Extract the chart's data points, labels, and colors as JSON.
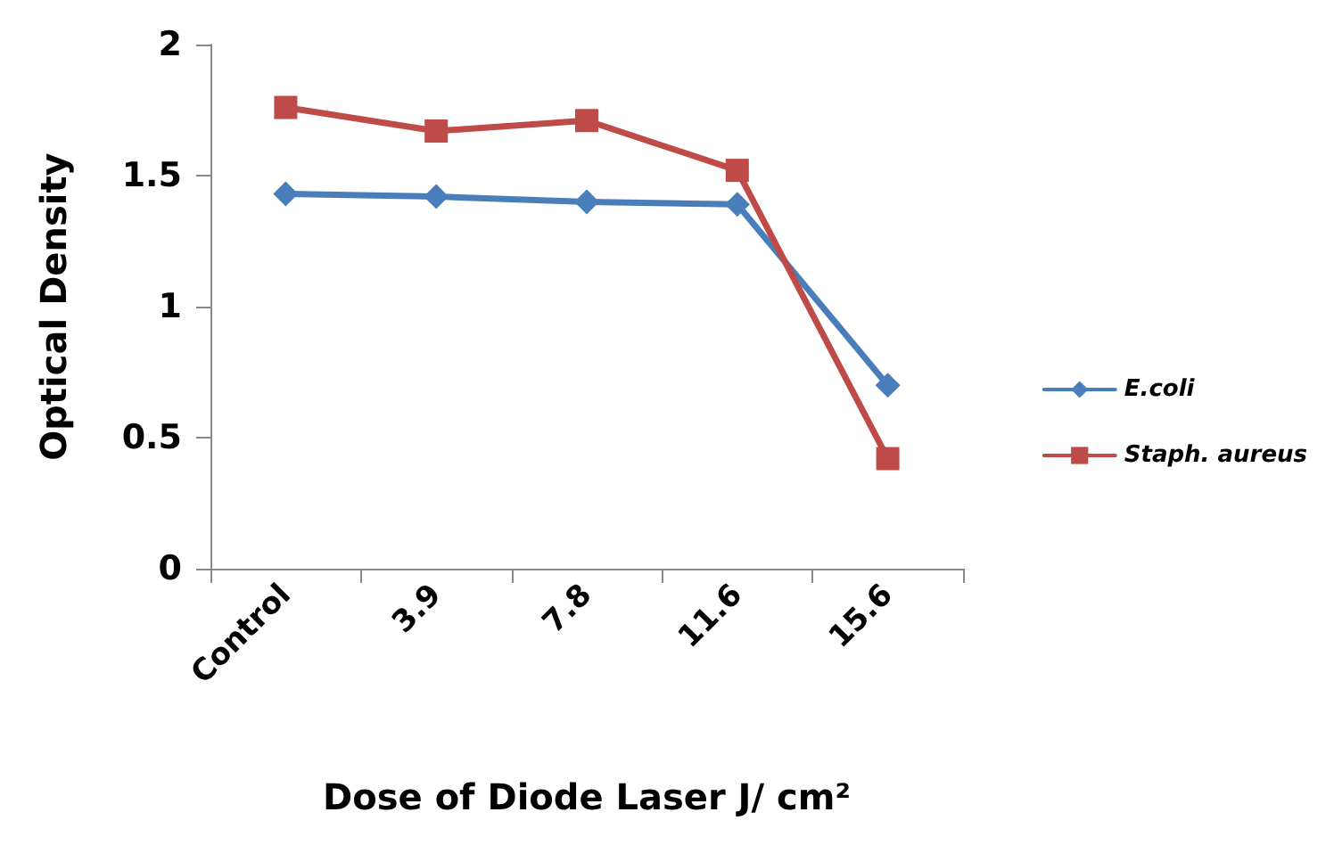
{
  "chart_data": {
    "type": "line",
    "xlabel": "Dose of Diode Laser J/ cm²",
    "ylabel": "Optical Density",
    "categories": [
      "Control",
      "3.9",
      "7.8",
      "11.6",
      "15.6"
    ],
    "series": [
      {
        "name": "E.coli",
        "color": "#4a7ebb",
        "marker": "diamond",
        "values": [
          1.43,
          1.42,
          1.4,
          1.39,
          0.7
        ]
      },
      {
        "name": "Staph. aureus",
        "color": "#be4b48",
        "marker": "square",
        "values": [
          1.76,
          1.67,
          1.71,
          1.52,
          0.42
        ]
      }
    ],
    "ylim": [
      0,
      2
    ],
    "yticks": [
      0,
      0.5,
      1,
      1.5,
      2
    ],
    "grid": false,
    "legend": "right"
  }
}
